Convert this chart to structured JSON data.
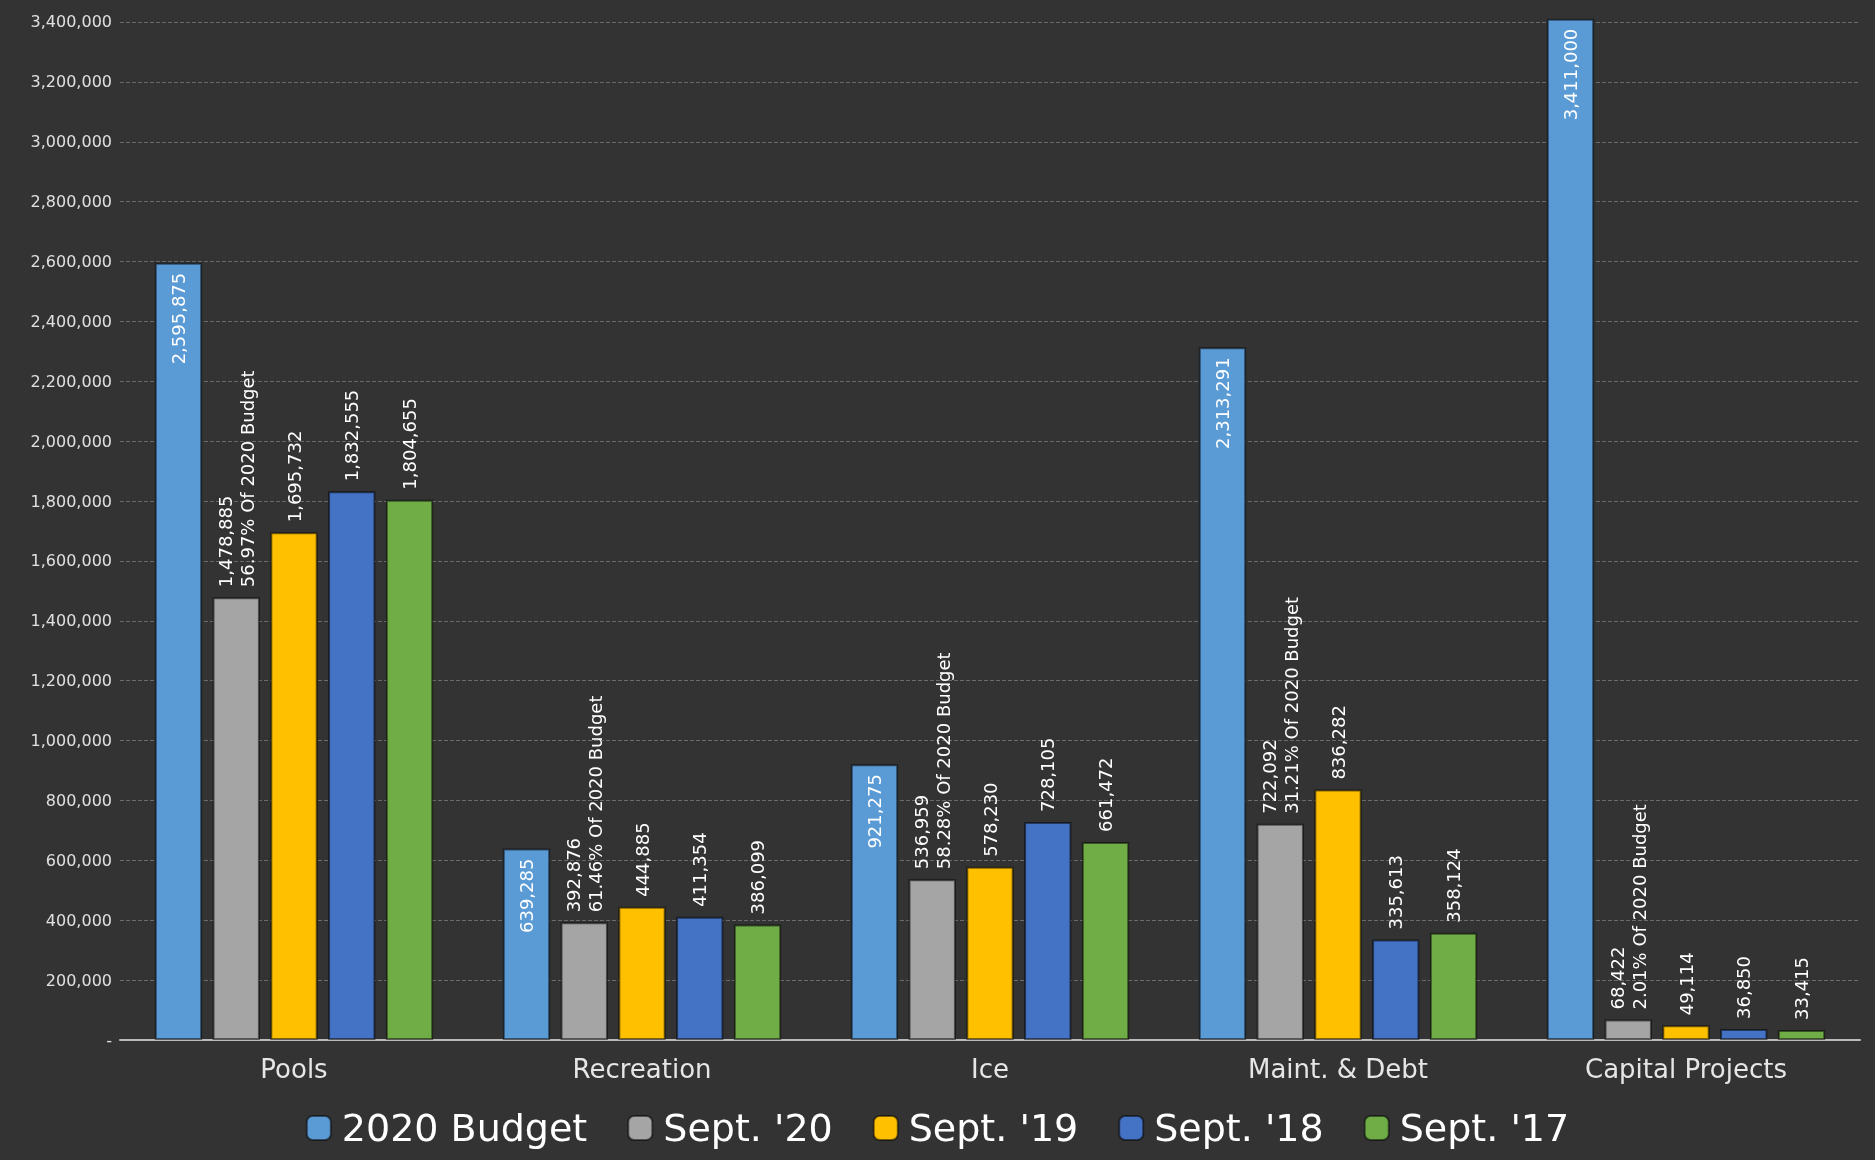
{
  "chart_data": {
    "type": "bar",
    "categories": [
      "Pools",
      "Recreation",
      "Ice",
      "Maint. & Debt",
      "Capital Projects"
    ],
    "series": [
      {
        "name": "2020 Budget",
        "color": "#5b9bd5",
        "values": [
          2595875,
          639285,
          921275,
          2313291,
          3411000
        ],
        "value_labels": [
          "2,595,875",
          "639,285",
          "921,275",
          "2,313,291",
          "3,411,000"
        ]
      },
      {
        "name": "Sept. '20",
        "color": "#a5a5a5",
        "values": [
          1478885,
          392876,
          536959,
          722092,
          68422
        ],
        "value_labels": [
          "1,478,885\n56.97% Of 2020 Budget",
          "392,876\n61.46% Of 2020 Budget",
          "536,959\n58.28% Of 2020 Budget",
          "722,092\n31.21% Of 2020 Budget",
          "68,422\n2.01% Of 2020 Budget"
        ]
      },
      {
        "name": "Sept. '19",
        "color": "#ffc000",
        "values": [
          1695732,
          444885,
          578230,
          836282,
          49114
        ],
        "value_labels": [
          "1,695,732",
          "444,885",
          "578,230",
          "836,282",
          "49,114"
        ]
      },
      {
        "name": "Sept. '18",
        "color": "#4472c4",
        "values": [
          1832555,
          411354,
          728105,
          335613,
          36850
        ],
        "value_labels": [
          "1,832,555",
          "411,354",
          "728,105",
          "335,613",
          "36,850"
        ]
      },
      {
        "name": "Sept. '17",
        "color": "#70ad47",
        "values": [
          1804655,
          386099,
          661472,
          358124,
          33415
        ],
        "value_labels": [
          "1,804,655",
          "386,099",
          "661,472",
          "358,124",
          "33,415"
        ]
      }
    ],
    "ylim": [
      0,
      3420000
    ],
    "yticks": [
      {
        "value": 0,
        "label": "-"
      },
      {
        "value": 200000,
        "label": "200,000"
      },
      {
        "value": 400000,
        "label": "400,000"
      },
      {
        "value": 600000,
        "label": "600,000"
      },
      {
        "value": 800000,
        "label": "800,000"
      },
      {
        "value": 1000000,
        "label": "1,000,000"
      },
      {
        "value": 1200000,
        "label": "1,200,000"
      },
      {
        "value": 1400000,
        "label": "1,400,000"
      },
      {
        "value": 1600000,
        "label": "1,600,000"
      },
      {
        "value": 1800000,
        "label": "1,800,000"
      },
      {
        "value": 2000000,
        "label": "2,000,000"
      },
      {
        "value": 2200000,
        "label": "2,200,000"
      },
      {
        "value": 2400000,
        "label": "2,400,000"
      },
      {
        "value": 2600000,
        "label": "2,600,000"
      },
      {
        "value": 2800000,
        "label": "2,800,000"
      },
      {
        "value": 3000000,
        "label": "3,000,000"
      },
      {
        "value": 3200000,
        "label": "3,200,000"
      },
      {
        "value": 3400000,
        "label": "3,400,000"
      }
    ],
    "grid": "y",
    "legend": "bottom"
  }
}
